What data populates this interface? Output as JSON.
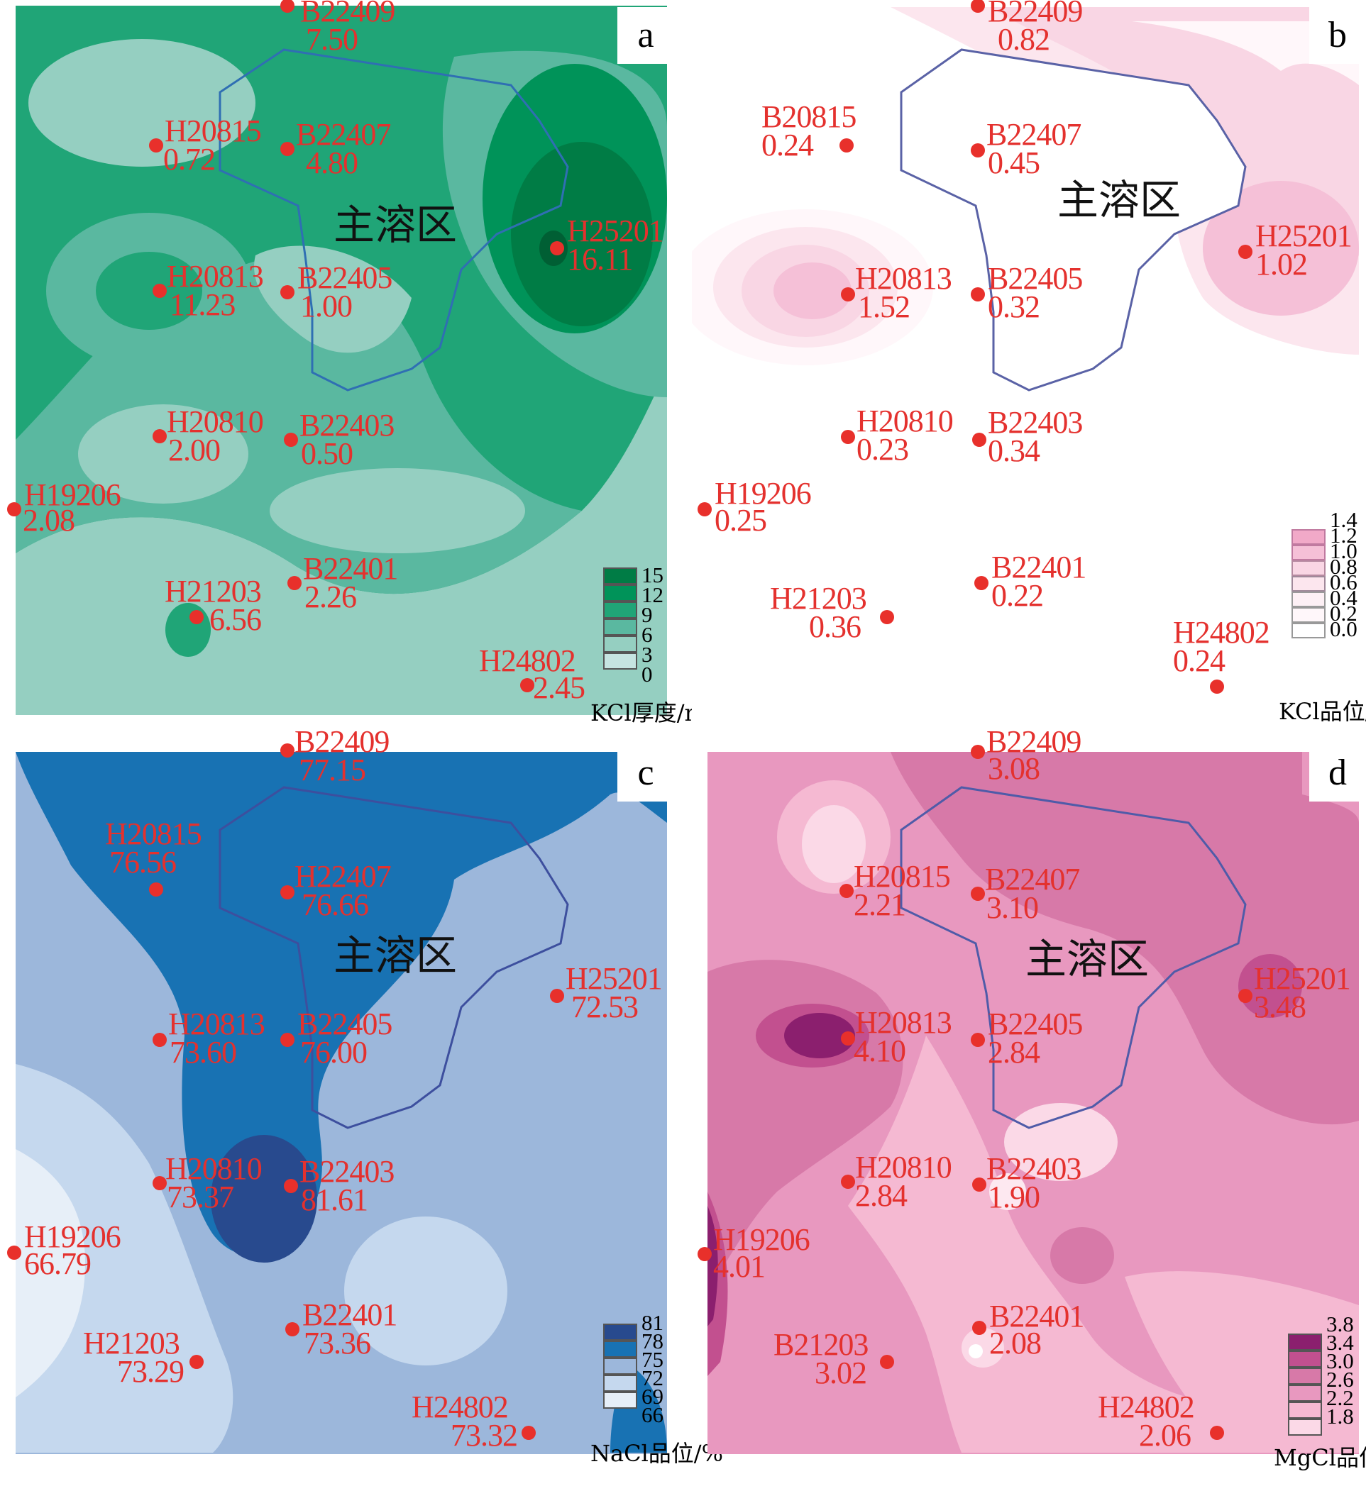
{
  "zone_label": "主溶区",
  "panels": {
    "a": {
      "letter": "a",
      "legend_title": "KCl厚度/m",
      "legend_ticks": [
        "15",
        "12",
        "9",
        "6",
        "3",
        "0"
      ],
      "legend_colors": [
        "#007c45",
        "#009359",
        "#20a577",
        "#5ab8a0",
        "#95cfc1",
        "#c6e4e1"
      ],
      "wells": [
        {
          "id": "B22409",
          "value": "7.50"
        },
        {
          "id": "H20815",
          "value": "0.72"
        },
        {
          "id": "B22407",
          "value": "4.80"
        },
        {
          "id": "H25201",
          "value": "16.11"
        },
        {
          "id": "H20813",
          "value": "11.23"
        },
        {
          "id": "B22405",
          "value": "1.00"
        },
        {
          "id": "H20810",
          "value": "2.00"
        },
        {
          "id": "B22403",
          "value": "0.50"
        },
        {
          "id": "H19206",
          "value": "2.08"
        },
        {
          "id": "B22401",
          "value": "2.26"
        },
        {
          "id": "H21203",
          "value": "6.56"
        },
        {
          "id": "H24802",
          "value": "2.45"
        }
      ]
    },
    "b": {
      "letter": "b",
      "legend_title": "KCl品位/%",
      "legend_ticks": [
        "1.4",
        "1.2",
        "1.0",
        "0.8",
        "0.6",
        "0.4",
        "0.2",
        "0.0"
      ],
      "legend_colors": [
        "#f1a9c8",
        "#f5c0d7",
        "#f9d6e4",
        "#fce6ee",
        "#fdf0f5",
        "#fff7fa",
        "#ffffff"
      ],
      "wells": [
        {
          "id": "B22409",
          "value": "0.82"
        },
        {
          "id": "B20815",
          "value": "0.24"
        },
        {
          "id": "B22407",
          "value": "0.45"
        },
        {
          "id": "H25201",
          "value": "1.02"
        },
        {
          "id": "H20813",
          "value": "1.52"
        },
        {
          "id": "B22405",
          "value": "0.32"
        },
        {
          "id": "H20810",
          "value": "0.23"
        },
        {
          "id": "B22403",
          "value": "0.34"
        },
        {
          "id": "H19206",
          "value": "0.25"
        },
        {
          "id": "B22401",
          "value": "0.22"
        },
        {
          "id": "H21203",
          "value": "0.36"
        },
        {
          "id": "H24802",
          "value": "0.24"
        }
      ]
    },
    "c": {
      "letter": "c",
      "legend_title": "NaCl品位/%",
      "legend_ticks": [
        "81",
        "78",
        "75",
        "72",
        "69",
        "66"
      ],
      "legend_colors": [
        "#284a8e",
        "#1872b3",
        "#9cb7db",
        "#c5d8ee",
        "#e7eff8"
      ],
      "wells": [
        {
          "id": "B22409",
          "value": "77.15"
        },
        {
          "id": "H20815",
          "value": "76.56"
        },
        {
          "id": "H22407",
          "value": "76.66"
        },
        {
          "id": "H25201",
          "value": "72.53"
        },
        {
          "id": "H20813",
          "value": "73.60"
        },
        {
          "id": "B22405",
          "value": "76.00"
        },
        {
          "id": "H20810",
          "value": "73.37"
        },
        {
          "id": "B22403",
          "value": "81.61"
        },
        {
          "id": "H19206",
          "value": "66.79"
        },
        {
          "id": "B22401",
          "value": "73.36"
        },
        {
          "id": "H21203",
          "value": "73.29"
        },
        {
          "id": "H24802",
          "value": "73.32"
        }
      ]
    },
    "d": {
      "letter": "d",
      "legend_title": "MgCl品位/%",
      "legend_ticks": [
        "3.8",
        "3.4",
        "3.0",
        "2.6",
        "2.2",
        "1.8"
      ],
      "legend_colors": [
        "#8b1f6e",
        "#c2508f",
        "#d779a8",
        "#e898bf",
        "#f5b9d2",
        "#fbd9e7"
      ],
      "wells": [
        {
          "id": "B22409",
          "value": "3.08"
        },
        {
          "id": "H20815",
          "value": "2.21"
        },
        {
          "id": "B22407",
          "value": "3.10"
        },
        {
          "id": "H25201",
          "value": "3.48"
        },
        {
          "id": "H20813",
          "value": "4.10"
        },
        {
          "id": "B22405",
          "value": "2.84"
        },
        {
          "id": "H20810",
          "value": "2.84"
        },
        {
          "id": "B22403",
          "value": "1.90"
        },
        {
          "id": "H19206",
          "value": "4.01"
        },
        {
          "id": "B22401",
          "value": "2.08"
        },
        {
          "id": "B21203",
          "value": "3.02"
        },
        {
          "id": "H24802",
          "value": "2.06"
        }
      ]
    }
  }
}
